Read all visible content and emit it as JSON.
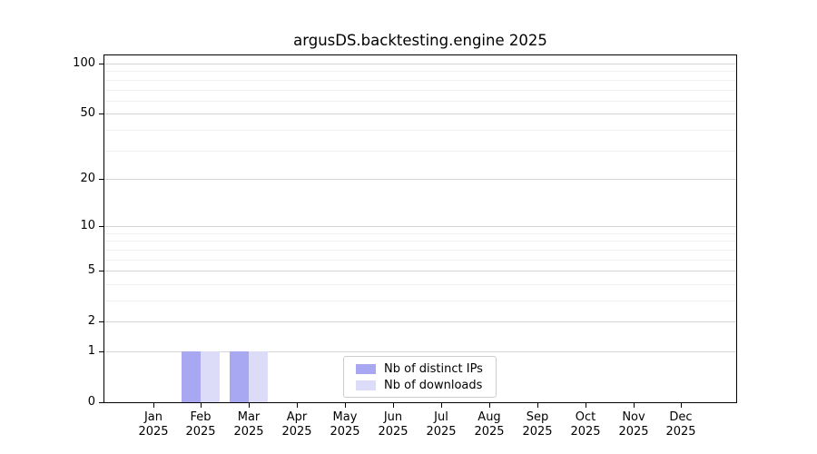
{
  "title": "argusDS.backtesting.engine 2025",
  "chart_data": {
    "type": "bar",
    "scale": "log1p",
    "title": "argusDS.backtesting.engine 2025",
    "xlabel": "",
    "ylabel": "",
    "categories": [
      {
        "month": "Jan",
        "year": "2025"
      },
      {
        "month": "Feb",
        "year": "2025"
      },
      {
        "month": "Mar",
        "year": "2025"
      },
      {
        "month": "Apr",
        "year": "2025"
      },
      {
        "month": "May",
        "year": "2025"
      },
      {
        "month": "Jun",
        "year": "2025"
      },
      {
        "month": "Jul",
        "year": "2025"
      },
      {
        "month": "Aug",
        "year": "2025"
      },
      {
        "month": "Sep",
        "year": "2025"
      },
      {
        "month": "Oct",
        "year": "2025"
      },
      {
        "month": "Nov",
        "year": "2025"
      },
      {
        "month": "Dec",
        "year": "2025"
      }
    ],
    "series": [
      {
        "name": "Nb of distinct IPs",
        "color": "#a7a7f2",
        "values": [
          0,
          1,
          1,
          0,
          0,
          0,
          0,
          0,
          0,
          0,
          0,
          0
        ]
      },
      {
        "name": "Nb of downloads",
        "color": "#dcdcf8",
        "values": [
          0,
          1,
          1,
          0,
          0,
          0,
          0,
          0,
          0,
          0,
          0,
          0
        ]
      }
    ],
    "yticks": [
      0,
      1,
      2,
      5,
      10,
      20,
      50,
      100
    ],
    "ylim": [
      0,
      112
    ],
    "grid": {
      "major_values": [
        1,
        2,
        5,
        10,
        20,
        50,
        100
      ],
      "minor_values": [
        3,
        4,
        6,
        7,
        8,
        9,
        30,
        40,
        60,
        70,
        80,
        90
      ]
    },
    "legend_position": "lower-center",
    "grid_on": true
  },
  "colors": {
    "bar_distinct_ips": "#a7a7f2",
    "bar_downloads": "#dcdcf8",
    "grid_major": "#d6d6d6",
    "grid_minor": "#efefef",
    "axis": "#000000",
    "legend_border": "#cccccc"
  }
}
